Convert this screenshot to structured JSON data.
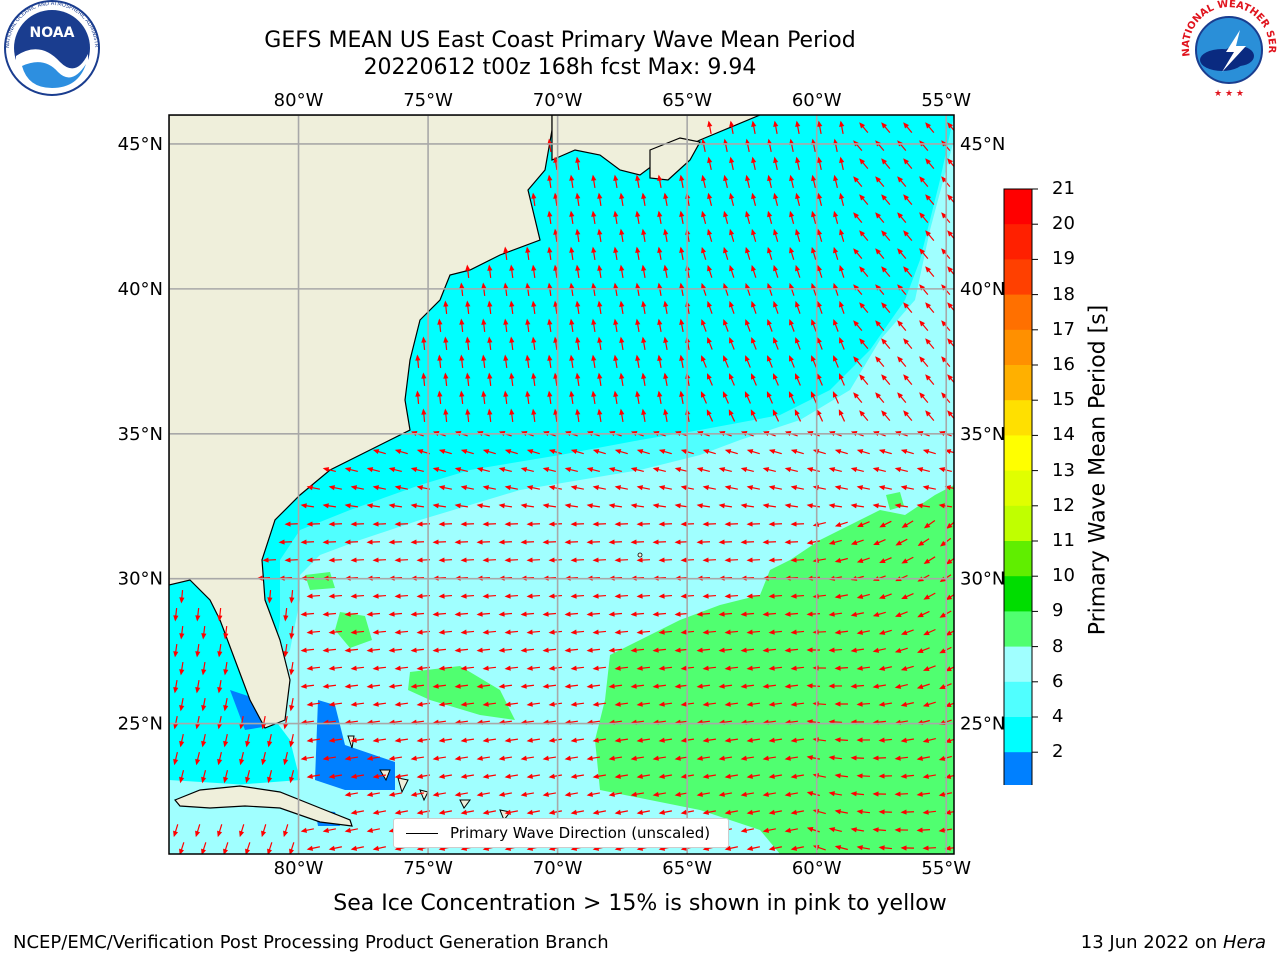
{
  "title": {
    "line1": "GEFS MEAN US East Coast Primary Wave Mean Period",
    "line2": "20220612 t00z 168h fcst   Max: 9.94"
  },
  "logos": {
    "noaa_text": "NOAA",
    "noaa_ring": "NATIONAL OCEANIC AND ATMOSPHERIC ADMINISTRATION · U.S. DEPARTMENT OF COMMERCE",
    "nws_ring": "NATIONAL WEATHER SERVICE"
  },
  "map": {
    "lon_labels": [
      "80°W",
      "75°W",
      "70°W",
      "65°W",
      "60°W",
      "55°W"
    ],
    "lat_labels": [
      "45°N",
      "40°N",
      "35°N",
      "30°N",
      "25°N"
    ],
    "lon_values": [
      -80,
      -75,
      -70,
      -65,
      -60,
      -55
    ],
    "lat_values": [
      45,
      40,
      35,
      30,
      25
    ],
    "extent": {
      "lon_min": -85,
      "lon_max": -54.7,
      "lat_min": 20.5,
      "lat_max": 46
    },
    "land_color": "#efefdb",
    "legend_label": "Primary Wave Direction (unscaled)",
    "arrow_color": "#ff0000"
  },
  "colorbar": {
    "title": "Primary Wave Mean Period [s]",
    "ticks": [
      "21",
      "20",
      "19",
      "18",
      "17",
      "16",
      "15",
      "14",
      "13",
      "12",
      "11",
      "10",
      "9",
      "8",
      "6",
      "4",
      "2"
    ],
    "colors_top_to_bottom": [
      "#ff0000",
      "#ff2000",
      "#ff4000",
      "#ff7000",
      "#ff9000",
      "#ffb000",
      "#ffe000",
      "#ffff00",
      "#e0ff00",
      "#c0ff00",
      "#60ee00",
      "#00dd00",
      "#50ff70",
      "#a0ffff",
      "#50ffff",
      "#00ffff",
      "#0080ff"
    ],
    "extend_color": "#0000ff"
  },
  "note": "Sea Ice Concentration > 15% is shown in pink to yellow",
  "footer": {
    "left": "NCEP/EMC/Verification Post Processing Product Generation Branch",
    "right_date": "13 Jun 2022 on ",
    "right_host": "Hera"
  }
}
